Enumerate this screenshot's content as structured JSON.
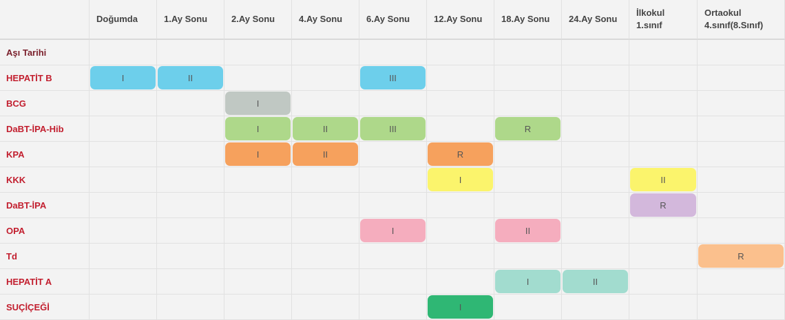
{
  "columns": [
    "",
    "Doğumda",
    "1.Ay Sonu",
    "2.Ay Sonu",
    "4.Ay Sonu",
    "6.Ay Sonu",
    "12.Ay Sonu",
    "18.Ay Sonu",
    "24.Ay Sonu",
    "İlkokul\n1.sınıf",
    "Ortaokul\n4.sınıf(8.Sınıf)"
  ],
  "rows": [
    {
      "label": "Aşı Tarihi",
      "doses": {}
    },
    {
      "label": "HEPATİT B",
      "doses": {
        "1": {
          "text": "I",
          "color": "#6dcfeb"
        },
        "2": {
          "text": "II",
          "color": "#6dcfeb"
        },
        "5": {
          "text": "III",
          "color": "#6dcfeb"
        }
      }
    },
    {
      "label": "BCG",
      "doses": {
        "3": {
          "text": "I",
          "color": "#c0c8c3"
        }
      }
    },
    {
      "label": "DaBT-İPA-Hib",
      "doses": {
        "3": {
          "text": "I",
          "color": "#aed88a"
        },
        "4": {
          "text": "II",
          "color": "#aed88a"
        },
        "5": {
          "text": "III",
          "color": "#aed88a"
        },
        "7": {
          "text": "R",
          "color": "#aed88a"
        }
      }
    },
    {
      "label": "KPA",
      "doses": {
        "3": {
          "text": "I",
          "color": "#f6a15d"
        },
        "4": {
          "text": "II",
          "color": "#f6a15d"
        },
        "6": {
          "text": "R",
          "color": "#f6a15d"
        }
      }
    },
    {
      "label": "KKK",
      "doses": {
        "6": {
          "text": "I",
          "color": "#fbf46c"
        },
        "9": {
          "text": "II",
          "color": "#fbf46c"
        }
      }
    },
    {
      "label": "DaBT-İPA",
      "doses": {
        "9": {
          "text": "R",
          "color": "#d3b8dc"
        }
      }
    },
    {
      "label": "OPA",
      "doses": {
        "5": {
          "text": "I",
          "color": "#f5adbe"
        },
        "7": {
          "text": "II",
          "color": "#f5adbe"
        }
      }
    },
    {
      "label": "Td",
      "doses": {
        "10": {
          "text": "R",
          "color": "#fbc08d"
        }
      }
    },
    {
      "label": "HEPATİT A",
      "doses": {
        "7": {
          "text": "I",
          "color": "#a2dccf"
        },
        "8": {
          "text": "II",
          "color": "#a2dccf"
        }
      }
    },
    {
      "label": "SUÇİÇEĞİ",
      "doses": {
        "6": {
          "text": "I",
          "color": "#2fb774"
        }
      }
    }
  ]
}
